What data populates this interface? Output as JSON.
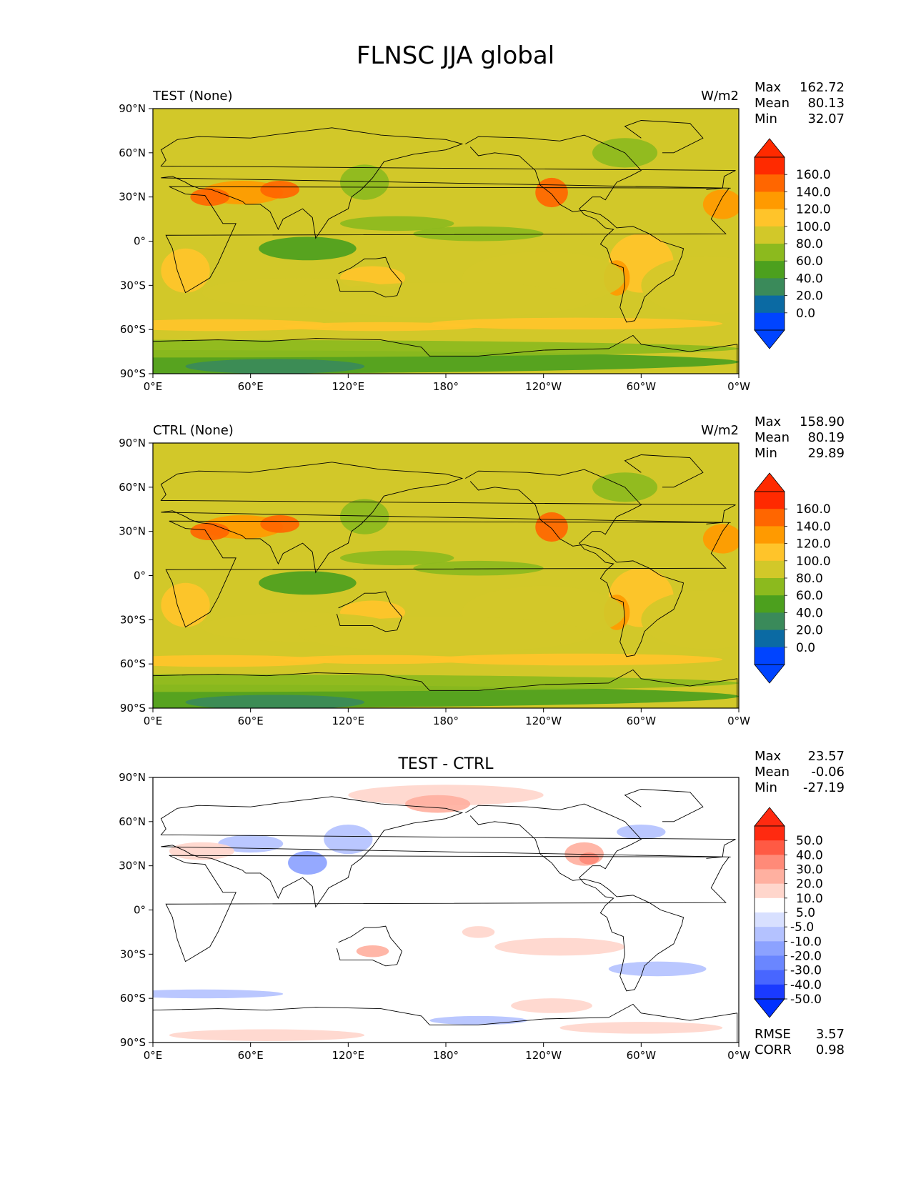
{
  "figure": {
    "title": "FLNSC JJA global"
  },
  "chart_data": [
    {
      "type": "heatmap",
      "id": "test",
      "left_title": "TEST (None)",
      "center_title": "",
      "units": "W/m2",
      "stats": [
        {
          "label": "Max",
          "value": "162.72"
        },
        {
          "label": "Mean",
          "value": "80.13"
        },
        {
          "label": "Min",
          "value": "32.07"
        }
      ],
      "footer_stats": [],
      "x_ticks": [
        "0°E",
        "60°E",
        "120°E",
        "180°",
        "120°W",
        "60°W",
        "0°W"
      ],
      "y_ticks": [
        "90°N",
        "60°N",
        "30°N",
        "0°",
        "30°S",
        "60°S",
        "90°S"
      ],
      "xlim": [
        0,
        360
      ],
      "ylim": [
        -90,
        90
      ],
      "colorbar": {
        "labels": [
          "160.0",
          "140.0",
          "120.0",
          "100.0",
          "80.0",
          "60.0",
          "40.0",
          "20.0",
          "0.0"
        ],
        "colors": [
          "#ff2a00",
          "#ff6600",
          "#ff9a00",
          "#ffc42a",
          "#d2c829",
          "#8cba1e",
          "#4ca01e",
          "#3a8a5a",
          "#0b6aa3",
          "#0044ff"
        ],
        "top_color": "#ff2a00",
        "bottom_color": "#0044ff"
      }
    },
    {
      "type": "heatmap",
      "id": "ctrl",
      "left_title": "CTRL (None)",
      "center_title": "",
      "units": "W/m2",
      "stats": [
        {
          "label": "Max",
          "value": "158.90"
        },
        {
          "label": "Mean",
          "value": "80.19"
        },
        {
          "label": "Min",
          "value": "29.89"
        }
      ],
      "footer_stats": [],
      "x_ticks": [
        "0°E",
        "60°E",
        "120°E",
        "180°",
        "120°W",
        "60°W",
        "0°W"
      ],
      "y_ticks": [
        "90°N",
        "60°N",
        "30°N",
        "0°",
        "30°S",
        "60°S",
        "90°S"
      ],
      "xlim": [
        0,
        360
      ],
      "ylim": [
        -90,
        90
      ],
      "colorbar": {
        "labels": [
          "160.0",
          "140.0",
          "120.0",
          "100.0",
          "80.0",
          "60.0",
          "40.0",
          "20.0",
          "0.0"
        ],
        "colors": [
          "#ff2a00",
          "#ff6600",
          "#ff9a00",
          "#ffc42a",
          "#d2c829",
          "#8cba1e",
          "#4ca01e",
          "#3a8a5a",
          "#0b6aa3",
          "#0044ff"
        ],
        "top_color": "#ff2a00",
        "bottom_color": "#0044ff"
      }
    },
    {
      "type": "heatmap",
      "id": "diff",
      "left_title": "",
      "center_title": "TEST - CTRL",
      "units": "",
      "stats": [
        {
          "label": "Max",
          "value": "23.57"
        },
        {
          "label": "Mean",
          "value": "-0.06"
        },
        {
          "label": "Min",
          "value": "-27.19"
        }
      ],
      "footer_stats": [
        {
          "label": "RMSE",
          "value": "3.57"
        },
        {
          "label": "CORR",
          "value": "0.98"
        }
      ],
      "x_ticks": [
        "0°E",
        "60°E",
        "120°E",
        "180°",
        "120°W",
        "60°W",
        "0°W"
      ],
      "y_ticks": [
        "90°N",
        "60°N",
        "30°N",
        "0°",
        "30°S",
        "60°S",
        "90°S"
      ],
      "xlim": [
        0,
        360
      ],
      "ylim": [
        -90,
        90
      ],
      "colorbar": {
        "labels": [
          "50.0",
          "40.0",
          "30.0",
          "20.0",
          "10.0",
          "5.0",
          "-5.0",
          "-10.0",
          "-20.0",
          "-30.0",
          "-40.0",
          "-50.0"
        ],
        "colors": [
          "#ff2a10",
          "#ff5a44",
          "#ff8a78",
          "#ffb0a0",
          "#ffd6cc",
          "#ffffff",
          "#d8e0ff",
          "#b4c2ff",
          "#8ca2ff",
          "#6a86ff",
          "#4866ff",
          "#1a3aff"
        ],
        "top_color": "#ff2a10",
        "bottom_color": "#0030ff"
      }
    }
  ]
}
